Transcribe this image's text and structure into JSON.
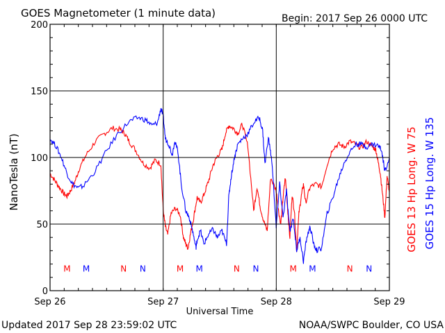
{
  "header": {
    "title": "GOES Magnetometer (1 minute data)",
    "begin": "Begin:  2017 Sep 26 0000 UTC"
  },
  "footer": {
    "updated": "Updated 2017 Sep 28 23:59:02 UTC",
    "credit": "NOAA/SWPC Boulder, CO USA"
  },
  "colors": {
    "goes13": "#ff0000",
    "goes15": "#0000ff",
    "grid": "#000000",
    "background": "#ffffff"
  },
  "chart_data": {
    "type": "line",
    "title": "GOES Magnetometer (1 minute data)",
    "xlabel": "Universal Time",
    "ylabel": "NanoTesla (nT)",
    "ylim": [
      0,
      200
    ],
    "yticks": [
      "0",
      "50",
      "100",
      "150",
      "200"
    ],
    "xlim_days": [
      0,
      3
    ],
    "xticks": [
      "Sep 26",
      "Sep 27",
      "Sep 28",
      "Sep 29"
    ],
    "grid": true,
    "legend_position": "right, rotated",
    "series": [
      {
        "name": "GOES 13 Hp  Long. W 75",
        "color": "#ff0000",
        "x": [
          0,
          0.04,
          0.08,
          0.12,
          0.15,
          0.18,
          0.22,
          0.26,
          0.32,
          0.4,
          0.48,
          0.55,
          0.62,
          0.66,
          0.7,
          0.76,
          0.82,
          0.88,
          0.93,
          0.98,
          1.0,
          1.02,
          1.04,
          1.07,
          1.11,
          1.15,
          1.18,
          1.2,
          1.22,
          1.24,
          1.27,
          1.3,
          1.33,
          1.36,
          1.4,
          1.44,
          1.48,
          1.52,
          1.55,
          1.58,
          1.62,
          1.66,
          1.7,
          1.75,
          1.8,
          1.83,
          1.86,
          1.89,
          1.92,
          1.95,
          2.0,
          2.02,
          2.04,
          2.06,
          2.08,
          2.1,
          2.12,
          2.14,
          2.16,
          2.18,
          2.2,
          2.22,
          2.24,
          2.26,
          2.3,
          2.35,
          2.4,
          2.45,
          2.5,
          2.55,
          2.6,
          2.65,
          2.7,
          2.75,
          2.8,
          2.85,
          2.88,
          2.9,
          2.92,
          2.94,
          2.96,
          2.98,
          3.0
        ],
        "y": [
          88,
          83,
          78,
          73,
          71,
          75,
          82,
          92,
          102,
          112,
          118,
          122,
          121,
          118,
          112,
          105,
          96,
          92,
          98,
          95,
          60,
          48,
          42,
          58,
          62,
          57,
          40,
          35,
          32,
          42,
          55,
          70,
          66,
          72,
          82,
          94,
          101,
          106,
          118,
          124,
          122,
          118,
          125,
          108,
          60,
          78,
          62,
          52,
          45,
          85,
          75,
          60,
          50,
          70,
          85,
          62,
          40,
          72,
          60,
          30,
          58,
          70,
          80,
          66,
          78,
          80,
          78,
          95,
          107,
          110,
          108,
          112,
          110,
          107,
          112,
          108,
          106,
          97,
          88,
          72,
          55,
          86,
          74
        ]
      },
      {
        "name": "GOES 15 Hp  Long. W 135",
        "color": "#0000ff",
        "x": [
          0,
          0.05,
          0.1,
          0.15,
          0.2,
          0.25,
          0.3,
          0.4,
          0.5,
          0.6,
          0.7,
          0.78,
          0.85,
          0.9,
          0.95,
          0.98,
          1.0,
          1.02,
          1.05,
          1.08,
          1.1,
          1.13,
          1.16,
          1.2,
          1.23,
          1.26,
          1.29,
          1.3,
          1.33,
          1.36,
          1.4,
          1.44,
          1.48,
          1.52,
          1.56,
          1.58,
          1.6,
          1.63,
          1.66,
          1.7,
          1.75,
          1.8,
          1.85,
          1.88,
          1.9,
          1.93,
          1.96,
          2.0,
          2.03,
          2.06,
          2.09,
          2.12,
          2.15,
          2.18,
          2.21,
          2.24,
          2.27,
          2.3,
          2.33,
          2.36,
          2.4,
          2.45,
          2.5,
          2.55,
          2.6,
          2.65,
          2.7,
          2.75,
          2.8,
          2.85,
          2.9,
          2.93,
          2.96,
          3.0
        ],
        "y": [
          114,
          109,
          100,
          88,
          80,
          77,
          79,
          90,
          105,
          118,
          127,
          130,
          128,
          124,
          126,
          137,
          131,
          114,
          110,
          102,
          112,
          105,
          80,
          60,
          55,
          45,
          32,
          38,
          45,
          35,
          42,
          46,
          40,
          45,
          35,
          70,
          85,
          100,
          110,
          114,
          118,
          126,
          130,
          120,
          95,
          115,
          98,
          48,
          80,
          55,
          75,
          44,
          55,
          30,
          40,
          22,
          40,
          48,
          35,
          30,
          32,
          58,
          70,
          84,
          96,
          104,
          110,
          110,
          108,
          110,
          109,
          106,
          90,
          100
        ]
      }
    ],
    "annotations": {
      "markers": [
        {
          "label": "M",
          "color": "#ff0000",
          "day": 0.15
        },
        {
          "label": "M",
          "color": "#0000ff",
          "day": 0.32
        },
        {
          "label": "N",
          "color": "#ff0000",
          "day": 0.65
        },
        {
          "label": "N",
          "color": "#0000ff",
          "day": 0.82
        },
        {
          "label": "M",
          "color": "#ff0000",
          "day": 1.15
        },
        {
          "label": "M",
          "color": "#0000ff",
          "day": 1.32
        },
        {
          "label": "N",
          "color": "#ff0000",
          "day": 1.65
        },
        {
          "label": "N",
          "color": "#0000ff",
          "day": 1.82
        },
        {
          "label": "M",
          "color": "#ff0000",
          "day": 2.15
        },
        {
          "label": "M",
          "color": "#0000ff",
          "day": 2.32
        },
        {
          "label": "N",
          "color": "#ff0000",
          "day": 2.65
        },
        {
          "label": "N",
          "color": "#0000ff",
          "day": 2.82
        }
      ],
      "marker_value": 17
    }
  }
}
